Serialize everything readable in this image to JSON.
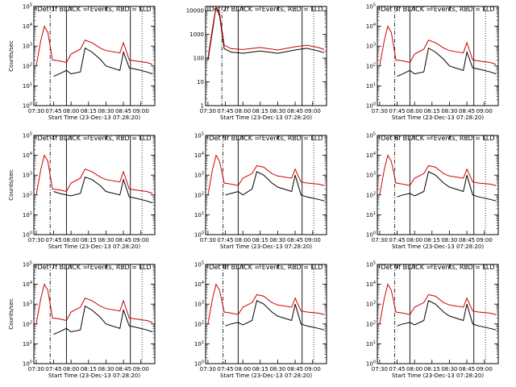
{
  "chart_data": [
    {
      "type": "line",
      "title": "Det 1f BLACK = Events, RED = LLD",
      "xlabel": "Start Time (23-Dec-13 07:28:20)",
      "ylabel": "Counts/sec",
      "y_scale": "log",
      "ylim": [
        1,
        100000
      ],
      "y_ticks": [
        "10^0",
        "10^1",
        "10^2",
        "10^3",
        "10^4",
        "10^5"
      ],
      "xlim": [
        "07:28",
        "09:12"
      ],
      "x_ticks": [
        "07:30",
        "07:45",
        "08:00",
        "08:15",
        "08:30",
        "08:45",
        "09:00"
      ],
      "vlines": {
        "dash_dot": "07:42",
        "solid": [
          "07:56",
          "08:51"
        ],
        "dotted": "09:01"
      },
      "series": [
        {
          "color": "#000000",
          "x": [
            "07:45",
            "07:50",
            "07:56",
            "08:00",
            "08:08",
            "08:12",
            "08:18",
            "08:25",
            "08:30",
            "08:42",
            "08:45",
            "08:50",
            "08:55",
            "09:05",
            "09:10"
          ],
          "y": [
            30,
            40,
            60,
            40,
            50,
            800,
            500,
            220,
            100,
            60,
            500,
            80,
            70,
            50,
            40
          ]
        },
        {
          "color": "#cc0000",
          "x": [
            "07:30",
            "07:34",
            "07:37",
            "07:40",
            "07:44",
            "07:50",
            "07:56",
            "08:00",
            "08:08",
            "08:12",
            "08:18",
            "08:25",
            "08:30",
            "08:42",
            "08:45",
            "08:50",
            "08:55",
            "09:05",
            "09:10"
          ],
          "y": [
            100,
            2000,
            10000,
            5000,
            200,
            180,
            150,
            400,
            700,
            2000,
            1500,
            800,
            600,
            450,
            1500,
            200,
            180,
            150,
            120
          ]
        }
      ]
    },
    {
      "type": "line",
      "title": "Det 2f BLACK = Events, RED = LLD",
      "xlabel": "Start Time (23-Dec-13 07:28:20)",
      "ylabel": "",
      "y_scale": "log",
      "ylim": [
        1,
        15000
      ],
      "y_ticks": [
        "1",
        "10",
        "100",
        "1000",
        "10000"
      ],
      "xlim": [
        "07:28",
        "09:12"
      ],
      "x_ticks": [
        "07:30",
        "07:45",
        "08:00",
        "08:15",
        "08:30",
        "08:45",
        "09:00"
      ],
      "vlines": {
        "dash_dot": "07:42",
        "solid": [
          "07:56",
          "08:51"
        ],
        "dotted": "09:01"
      },
      "series": [
        {
          "color": "#000000",
          "x": [
            "07:30",
            "07:34",
            "07:37",
            "07:40",
            "07:44",
            "07:50",
            "08:00",
            "08:15",
            "08:30",
            "08:45",
            "08:55",
            "09:05",
            "09:10"
          ],
          "y": [
            80,
            1500,
            15000,
            6000,
            250,
            180,
            160,
            200,
            160,
            220,
            260,
            200,
            170
          ]
        },
        {
          "color": "#cc0000",
          "x": [
            "07:30",
            "07:34",
            "07:37",
            "07:40",
            "07:44",
            "07:50",
            "08:00",
            "08:15",
            "08:30",
            "08:45",
            "08:55",
            "09:05",
            "09:10"
          ],
          "y": [
            100,
            2000,
            15000,
            8000,
            350,
            250,
            230,
            280,
            220,
            300,
            350,
            280,
            230
          ]
        }
      ]
    },
    {
      "type": "line",
      "title": "Det 3f BLACK = Events, RED = LLD",
      "xlabel": "Start Time (23-Dec-13 07:28:20)",
      "ylabel": "",
      "y_scale": "log",
      "ylim": [
        1,
        100000
      ],
      "y_ticks": [
        "10^0",
        "10^1",
        "10^2",
        "10^3",
        "10^4",
        "10^5"
      ],
      "xlim": [
        "07:28",
        "09:12"
      ],
      "x_ticks": [
        "07:30",
        "07:45",
        "08:00",
        "08:15",
        "08:30",
        "08:45",
        "09:00"
      ],
      "vlines": {
        "dash_dot": "07:43",
        "solid": [
          "07:56",
          "08:51"
        ],
        "dotted": "09:01"
      },
      "series": [
        {
          "color": "#000000",
          "x": [
            "07:45",
            "07:50",
            "07:56",
            "08:00",
            "08:08",
            "08:12",
            "08:18",
            "08:25",
            "08:30",
            "08:42",
            "08:45",
            "08:50",
            "08:55",
            "09:05",
            "09:10"
          ],
          "y": [
            30,
            40,
            60,
            40,
            50,
            800,
            500,
            220,
            100,
            60,
            500,
            80,
            70,
            50,
            40
          ]
        },
        {
          "color": "#cc0000",
          "x": [
            "07:30",
            "07:34",
            "07:37",
            "07:40",
            "07:44",
            "07:50",
            "07:56",
            "08:00",
            "08:08",
            "08:12",
            "08:18",
            "08:25",
            "08:30",
            "08:42",
            "08:45",
            "08:50",
            "08:55",
            "09:05",
            "09:10"
          ],
          "y": [
            100,
            2000,
            10000,
            5000,
            200,
            180,
            150,
            400,
            700,
            2000,
            1500,
            800,
            600,
            450,
            1500,
            200,
            180,
            150,
            120
          ]
        }
      ]
    },
    {
      "type": "line",
      "title": "Det 4f BLACK = Events, RED = LLD",
      "xlabel": "Start Time (23-Dec-13 07:28:20)",
      "ylabel": "Counts/sec",
      "y_scale": "log",
      "ylim": [
        1,
        100000
      ],
      "y_ticks": [
        "10^0",
        "10^1",
        "10^2",
        "10^3",
        "10^4",
        "10^5"
      ],
      "xlim": [
        "07:28",
        "09:12"
      ],
      "x_ticks": [
        "07:30",
        "07:45",
        "08:00",
        "08:15",
        "08:30",
        "08:45",
        "09:00"
      ],
      "vlines": {
        "dash_dot": "07:42",
        "solid": [
          "07:56",
          "08:51"
        ],
        "dotted": "09:01"
      },
      "series": [
        {
          "color": "#000000",
          "x": [
            "07:45",
            "07:50",
            "07:56",
            "08:00",
            "08:08",
            "08:12",
            "08:18",
            "08:25",
            "08:30",
            "08:42",
            "08:45",
            "08:50",
            "08:55",
            "09:05",
            "09:10"
          ],
          "y": [
            150,
            120,
            100,
            90,
            120,
            800,
            600,
            300,
            150,
            100,
            600,
            80,
            70,
            50,
            40
          ]
        },
        {
          "color": "#cc0000",
          "x": [
            "07:30",
            "07:34",
            "07:37",
            "07:40",
            "07:44",
            "07:50",
            "07:56",
            "08:00",
            "08:08",
            "08:12",
            "08:18",
            "08:25",
            "08:30",
            "08:42",
            "08:45",
            "08:50",
            "08:55",
            "09:05",
            "09:10"
          ],
          "y": [
            100,
            2000,
            10000,
            5000,
            200,
            180,
            150,
            400,
            700,
            2000,
            1500,
            800,
            600,
            450,
            1500,
            200,
            180,
            150,
            120
          ]
        }
      ]
    },
    {
      "type": "line",
      "title": "Det 5f BLACK = Events, RED = LLD",
      "xlabel": "Start Time (23-Dec-13 07:28:20)",
      "ylabel": "",
      "y_scale": "log",
      "ylim": [
        1,
        100000
      ],
      "y_ticks": [
        "10^0",
        "10^1",
        "10^2",
        "10^3",
        "10^4",
        "10^5"
      ],
      "xlim": [
        "07:28",
        "09:12"
      ],
      "x_ticks": [
        "07:30",
        "07:45",
        "08:00",
        "08:15",
        "08:30",
        "08:45",
        "09:00"
      ],
      "vlines": {
        "dash_dot": "07:43",
        "solid": [
          "07:56",
          "08:51"
        ],
        "dotted": "09:01"
      },
      "series": [
        {
          "color": "#000000",
          "x": [
            "07:45",
            "07:50",
            "07:56",
            "08:00",
            "08:08",
            "08:12",
            "08:18",
            "08:25",
            "08:30",
            "08:42",
            "08:45",
            "08:50",
            "08:55",
            "09:05",
            "09:10"
          ],
          "y": [
            100,
            120,
            150,
            100,
            200,
            1500,
            1000,
            400,
            250,
            150,
            1000,
            100,
            80,
            60,
            50
          ]
        },
        {
          "color": "#cc0000",
          "x": [
            "07:30",
            "07:34",
            "07:37",
            "07:40",
            "07:44",
            "07:50",
            "07:56",
            "08:00",
            "08:08",
            "08:12",
            "08:18",
            "08:25",
            "08:30",
            "08:42",
            "08:45",
            "08:50",
            "08:55",
            "09:05",
            "09:10"
          ],
          "y": [
            100,
            2000,
            10000,
            5000,
            400,
            350,
            300,
            700,
            1200,
            3000,
            2500,
            1200,
            900,
            700,
            2000,
            450,
            400,
            350,
            300
          ]
        }
      ]
    },
    {
      "type": "line",
      "title": "Det 6f BLACK = Events, RED = LLD",
      "xlabel": "Start Time (23-Dec-13 07:28:20)",
      "ylabel": "",
      "y_scale": "log",
      "ylim": [
        1,
        100000
      ],
      "y_ticks": [
        "10^0",
        "10^1",
        "10^2",
        "10^3",
        "10^4",
        "10^5"
      ],
      "xlim": [
        "07:28",
        "09:12"
      ],
      "x_ticks": [
        "07:30",
        "07:45",
        "08:00",
        "08:15",
        "08:30",
        "08:45",
        "09:00"
      ],
      "vlines": {
        "dash_dot": "07:43",
        "solid": [
          "07:56",
          "08:51"
        ],
        "dotted": "09:01"
      },
      "series": [
        {
          "color": "#000000",
          "x": [
            "07:45",
            "07:50",
            "07:56",
            "08:00",
            "08:08",
            "08:12",
            "08:18",
            "08:25",
            "08:30",
            "08:42",
            "08:45",
            "08:50",
            "08:55",
            "09:05",
            "09:10"
          ],
          "y": [
            80,
            100,
            120,
            90,
            150,
            1500,
            1000,
            400,
            250,
            150,
            1000,
            100,
            80,
            60,
            50
          ]
        },
        {
          "color": "#cc0000",
          "x": [
            "07:30",
            "07:34",
            "07:37",
            "07:40",
            "07:44",
            "07:50",
            "07:56",
            "08:00",
            "08:08",
            "08:12",
            "08:18",
            "08:25",
            "08:30",
            "08:42",
            "08:45",
            "08:50",
            "08:55",
            "09:05",
            "09:10"
          ],
          "y": [
            100,
            2000,
            10000,
            5000,
            400,
            350,
            300,
            700,
            1200,
            3000,
            2500,
            1200,
            900,
            700,
            2000,
            450,
            400,
            350,
            300
          ]
        }
      ]
    },
    {
      "type": "line",
      "title": "Det 7f BLACK = Events, RED = LLD",
      "xlabel": "Start Time (23-Dec-13 07:28:20)",
      "ylabel": "Counts/sec",
      "y_scale": "log",
      "ylim": [
        1,
        100000
      ],
      "y_ticks": [
        "10^0",
        "10^1",
        "10^2",
        "10^3",
        "10^4",
        "10^5"
      ],
      "xlim": [
        "07:28",
        "09:12"
      ],
      "x_ticks": [
        "07:30",
        "07:45",
        "08:00",
        "08:15",
        "08:30",
        "08:45",
        "09:00"
      ],
      "vlines": {
        "dash_dot": "07:42",
        "solid": [
          "07:56",
          "08:51"
        ],
        "dotted": "09:01"
      },
      "series": [
        {
          "color": "#000000",
          "x": [
            "07:45",
            "07:50",
            "07:56",
            "08:00",
            "08:08",
            "08:12",
            "08:18",
            "08:25",
            "08:30",
            "08:42",
            "08:45",
            "08:50",
            "08:55",
            "09:05",
            "09:10"
          ],
          "y": [
            30,
            40,
            60,
            40,
            50,
            800,
            500,
            220,
            100,
            60,
            500,
            80,
            70,
            50,
            40
          ]
        },
        {
          "color": "#cc0000",
          "x": [
            "07:30",
            "07:34",
            "07:37",
            "07:40",
            "07:44",
            "07:50",
            "07:56",
            "08:00",
            "08:08",
            "08:12",
            "08:18",
            "08:25",
            "08:30",
            "08:42",
            "08:45",
            "08:50",
            "08:55",
            "09:05",
            "09:10"
          ],
          "y": [
            100,
            2000,
            10000,
            5000,
            200,
            180,
            150,
            400,
            700,
            2000,
            1500,
            800,
            600,
            450,
            1500,
            200,
            180,
            150,
            120
          ]
        }
      ]
    },
    {
      "type": "line",
      "title": "Det 8f BLACK = Events, RED = LLD",
      "xlabel": "Start Time (23-Dec-13 07:28:20)",
      "ylabel": "",
      "y_scale": "log",
      "ylim": [
        1,
        100000
      ],
      "y_ticks": [
        "10^0",
        "10^1",
        "10^2",
        "10^3",
        "10^4",
        "10^5"
      ],
      "xlim": [
        "07:28",
        "09:12"
      ],
      "x_ticks": [
        "07:30",
        "07:45",
        "08:00",
        "08:15",
        "08:30",
        "08:45",
        "09:00"
      ],
      "vlines": {
        "dash_dot": "07:43",
        "solid": [
          "07:56",
          "08:51"
        ],
        "dotted": "09:01"
      },
      "series": [
        {
          "color": "#000000",
          "x": [
            "07:45",
            "07:50",
            "07:56",
            "08:00",
            "08:08",
            "08:12",
            "08:18",
            "08:25",
            "08:30",
            "08:42",
            "08:45",
            "08:50",
            "08:55",
            "09:05",
            "09:10"
          ],
          "y": [
            80,
            100,
            120,
            90,
            150,
            1500,
            1000,
            400,
            250,
            150,
            1000,
            100,
            80,
            60,
            50
          ]
        },
        {
          "color": "#cc0000",
          "x": [
            "07:30",
            "07:34",
            "07:37",
            "07:40",
            "07:44",
            "07:50",
            "07:56",
            "08:00",
            "08:08",
            "08:12",
            "08:18",
            "08:25",
            "08:30",
            "08:42",
            "08:45",
            "08:50",
            "08:55",
            "09:05",
            "09:10"
          ],
          "y": [
            100,
            2000,
            10000,
            5000,
            400,
            350,
            300,
            700,
            1200,
            3000,
            2500,
            1200,
            900,
            700,
            2000,
            450,
            400,
            350,
            300
          ]
        }
      ]
    },
    {
      "type": "line",
      "title": "Det 9f BLACK = Events, RED = LLD",
      "xlabel": "Start Time (23-Dec-13 07:28:20)",
      "ylabel": "",
      "y_scale": "log",
      "ylim": [
        1,
        100000
      ],
      "y_ticks": [
        "10^0",
        "10^1",
        "10^2",
        "10^3",
        "10^4",
        "10^5"
      ],
      "xlim": [
        "07:28",
        "09:12"
      ],
      "x_ticks": [
        "07:30",
        "07:45",
        "08:00",
        "08:15",
        "08:30",
        "08:45",
        "09:00"
      ],
      "vlines": {
        "dash_dot": "07:43",
        "solid": [
          "07:56",
          "08:51"
        ],
        "dotted": "09:01"
      },
      "series": [
        {
          "color": "#000000",
          "x": [
            "07:45",
            "07:50",
            "07:56",
            "08:00",
            "08:08",
            "08:12",
            "08:18",
            "08:25",
            "08:30",
            "08:42",
            "08:45",
            "08:50",
            "08:55",
            "09:05",
            "09:10"
          ],
          "y": [
            80,
            100,
            120,
            90,
            150,
            1500,
            1000,
            400,
            250,
            150,
            1000,
            100,
            80,
            60,
            50
          ]
        },
        {
          "color": "#cc0000",
          "x": [
            "07:30",
            "07:34",
            "07:37",
            "07:40",
            "07:44",
            "07:50",
            "07:56",
            "08:00",
            "08:08",
            "08:12",
            "08:18",
            "08:25",
            "08:30",
            "08:42",
            "08:45",
            "08:50",
            "08:55",
            "09:05",
            "09:10"
          ],
          "y": [
            100,
            2000,
            10000,
            5000,
            400,
            350,
            300,
            700,
            1200,
            3000,
            2500,
            1200,
            900,
            700,
            2000,
            450,
            400,
            350,
            300
          ]
        }
      ]
    }
  ]
}
